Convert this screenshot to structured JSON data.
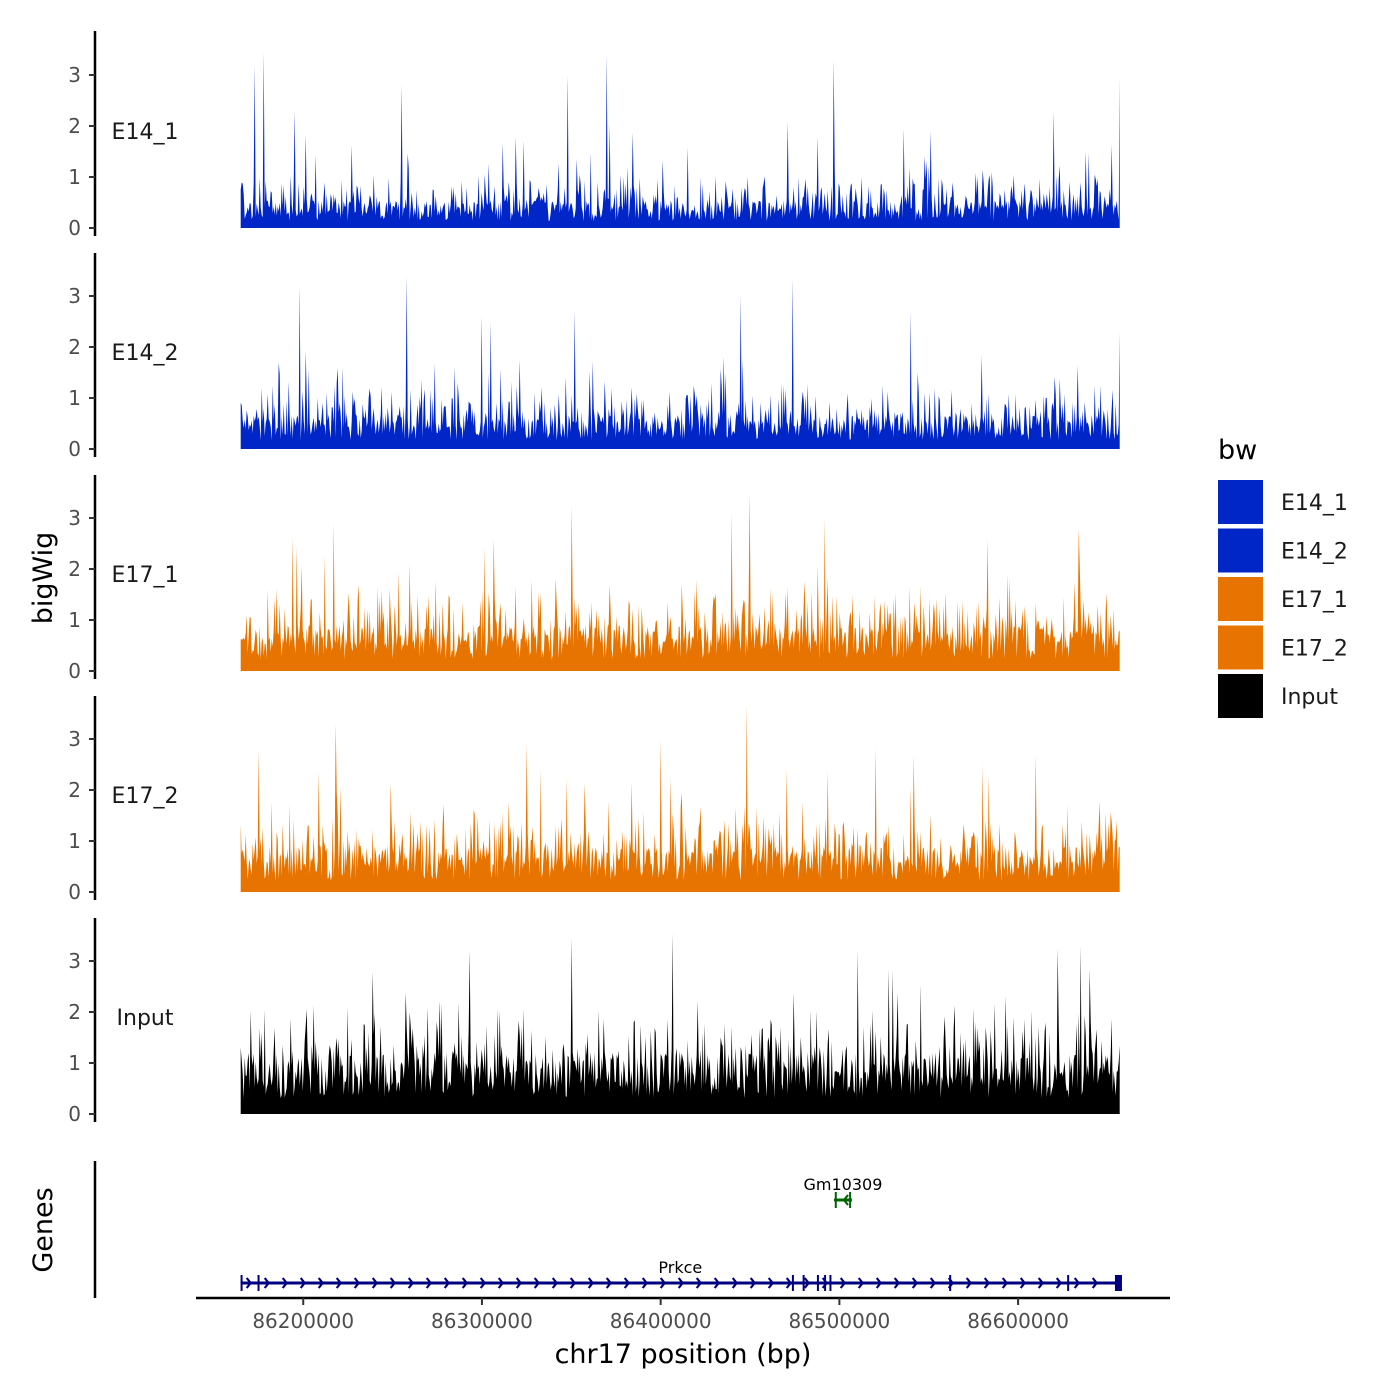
{
  "chart_data": {
    "type": "area",
    "ylabel": "bigWig",
    "xlabel": "chr17 position (bp)",
    "gene_track_label": "Genes",
    "ylim": [
      0,
      3.8
    ],
    "yticks": [
      0,
      1,
      2,
      3
    ],
    "xlim": [
      86140000,
      86685000
    ],
    "xrange_data": [
      86165000,
      86657000
    ],
    "xticks": [
      86200000,
      86300000,
      86400000,
      86500000,
      86600000
    ],
    "xtick_labels": [
      "86200000",
      "86300000",
      "86400000",
      "86500000",
      "86600000"
    ],
    "legend": {
      "title": "bw",
      "position": "right",
      "entries": [
        {
          "label": "E14_1",
          "color": "#0026c8"
        },
        {
          "label": "E14_2",
          "color": "#0026c8"
        },
        {
          "label": "E17_1",
          "color": "#e87400"
        },
        {
          "label": "E17_2",
          "color": "#e87400"
        },
        {
          "label": "Input",
          "color": "#000000"
        }
      ]
    },
    "series": [
      {
        "name": "E14_1",
        "color": "#0026c8",
        "baseline": 0.45,
        "spread": 0.55,
        "max_peak": 3.45,
        "peaks": [
          [
            86173000,
            3.2
          ],
          [
            86178000,
            3.45
          ],
          [
            86195000,
            2.3
          ],
          [
            86255000,
            2.8
          ],
          [
            86348000,
            3.0
          ],
          [
            86370000,
            3.4
          ],
          [
            86497000,
            3.3
          ],
          [
            86620000,
            2.3
          ],
          [
            86657000,
            2.95
          ]
        ]
      },
      {
        "name": "E14_2",
        "color": "#0026c8",
        "baseline": 0.55,
        "spread": 0.7,
        "max_peak": 3.4,
        "peaks": [
          [
            86198000,
            3.2
          ],
          [
            86258000,
            3.4
          ],
          [
            86300000,
            2.6
          ],
          [
            86352000,
            2.7
          ],
          [
            86445000,
            3.0
          ],
          [
            86474000,
            3.35
          ],
          [
            86540000,
            2.7
          ],
          [
            86657000,
            2.3
          ]
        ]
      },
      {
        "name": "E17_1",
        "color": "#e87400",
        "baseline": 0.75,
        "spread": 0.85,
        "max_peak": 3.5,
        "peaks": [
          [
            86217000,
            2.9
          ],
          [
            86350000,
            3.25
          ],
          [
            86440000,
            3.1
          ],
          [
            86450000,
            3.5
          ],
          [
            86492000,
            3.0
          ],
          [
            86583000,
            2.6
          ],
          [
            86634000,
            2.8
          ]
        ]
      },
      {
        "name": "E17_2",
        "color": "#e87400",
        "baseline": 0.75,
        "spread": 0.85,
        "max_peak": 3.7,
        "peaks": [
          [
            86175000,
            2.8
          ],
          [
            86218000,
            3.3
          ],
          [
            86325000,
            2.9
          ],
          [
            86400000,
            3.0
          ],
          [
            86448000,
            3.7
          ],
          [
            86580000,
            2.5
          ],
          [
            86610000,
            2.7
          ]
        ]
      },
      {
        "name": "Input",
        "color": "#000000",
        "baseline": 1.0,
        "spread": 1.0,
        "max_peak": 3.55,
        "peaks": [
          [
            86239000,
            2.8
          ],
          [
            86293000,
            3.2
          ],
          [
            86350000,
            3.45
          ],
          [
            86407000,
            3.55
          ],
          [
            86510000,
            3.2
          ],
          [
            86622000,
            3.25
          ],
          [
            86635000,
            3.3
          ]
        ]
      }
    ],
    "genes": [
      {
        "name": "Prkce",
        "start": 86165000,
        "end": 86657000,
        "strand": "+",
        "color": "#000080",
        "row": 0,
        "exons": [
          86165500,
          86175000,
          86474000,
          86480000,
          86488000,
          86492000,
          86495000,
          86562000,
          86628000,
          86656000
        ]
      },
      {
        "name": "Gm10309",
        "start": 86497000,
        "end": 86507000,
        "strand": "-",
        "color": "#006400",
        "row": 1,
        "exons": [
          86498000,
          86506000
        ]
      }
    ]
  }
}
